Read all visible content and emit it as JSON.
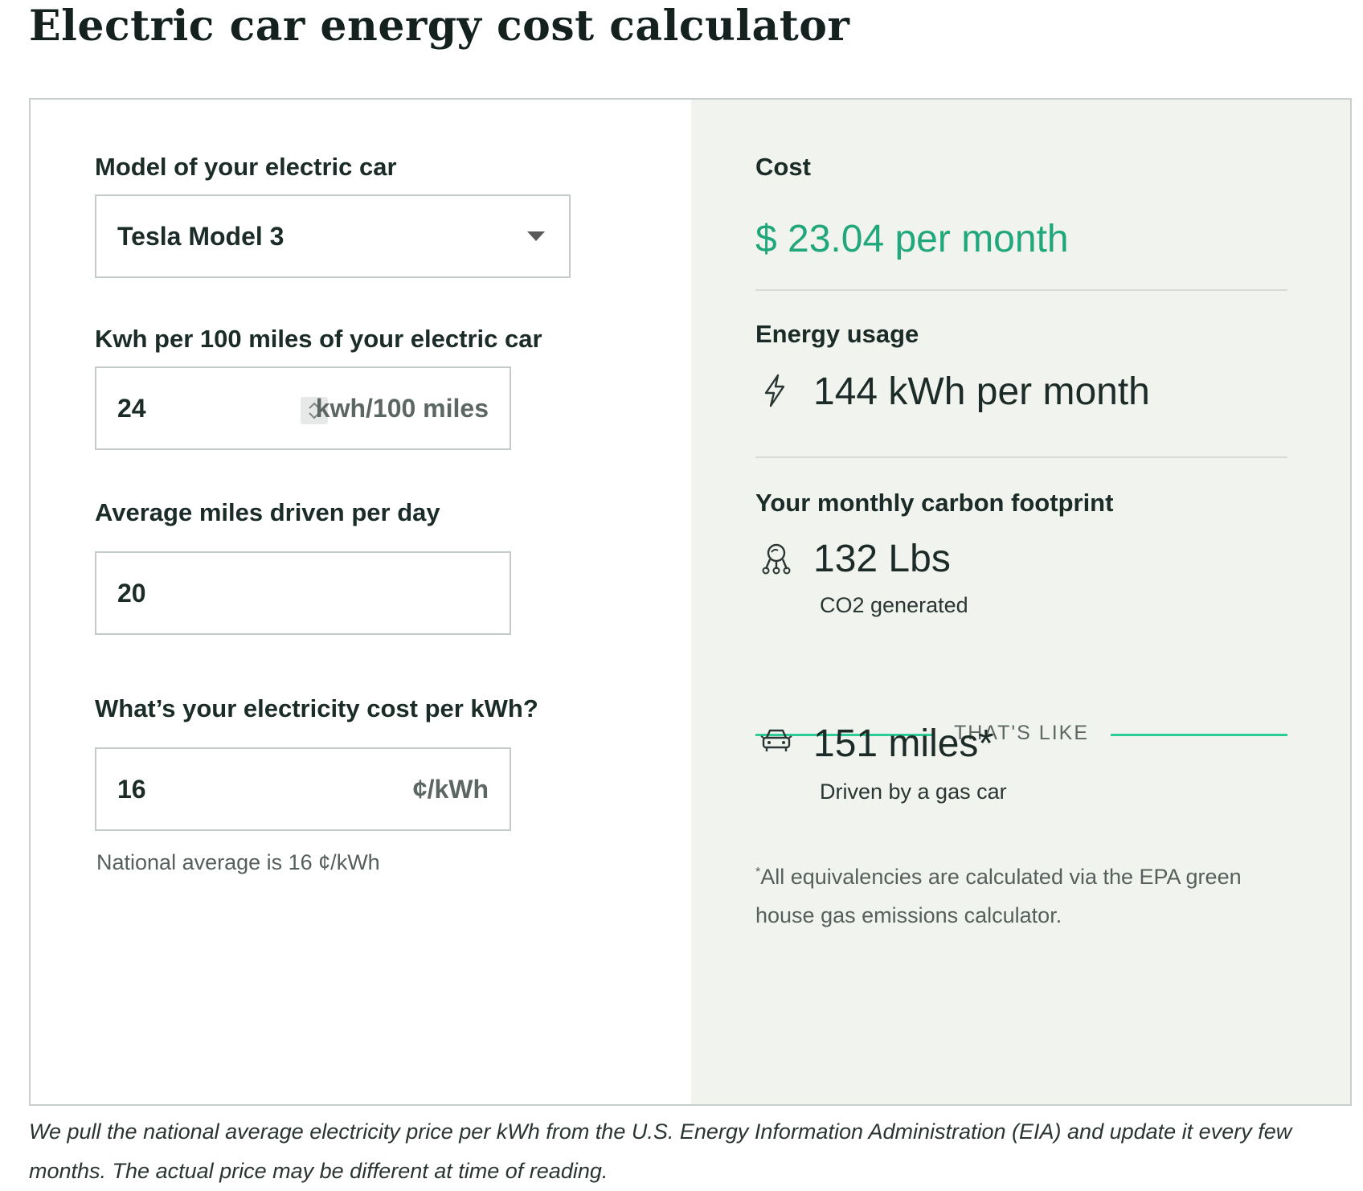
{
  "page": {
    "title": "Electric car energy cost calculator"
  },
  "inputs": {
    "model": {
      "label": "Model of your electric car",
      "value": "Tesla Model 3"
    },
    "efficiency": {
      "label": "Kwh per 100 miles of your electric car",
      "value": "24",
      "unit": "kwh/100 miles"
    },
    "miles": {
      "label": "Average miles driven per day",
      "value": "20"
    },
    "price": {
      "label": "What’s your electricity cost per kWh?",
      "value": "16",
      "unit": "¢/kWh",
      "hint": "National average is 16 ¢/kWh"
    }
  },
  "results": {
    "cost": {
      "label": "Cost",
      "value": "$  23.04 per month"
    },
    "energy": {
      "label": "Energy usage",
      "value": "144 kWh per month",
      "icon": "lightning-icon"
    },
    "carbon": {
      "label": "Your monthly carbon footprint",
      "value": "132 Lbs",
      "sub": "CO2 generated",
      "icon": "carbon-footprint-icon"
    },
    "thats_like": "THAT'S LIKE",
    "equivalent": {
      "value": "151 miles*",
      "sub": "Driven by a gas car",
      "icon": "car-icon"
    },
    "note_marker": "*",
    "note": "All equivalencies are calculated via the EPA green house gas emissions calculator."
  },
  "footer": {
    "text": "We pull the national average electricity price per kWh from the U.S. Energy Information Administration (EIA) and update it every few months. The actual price may be different at time of reading."
  },
  "colors": {
    "accent": "#20a77c",
    "divider_accent": "#2dcc98",
    "panel_bg": "#f1f3ef"
  }
}
